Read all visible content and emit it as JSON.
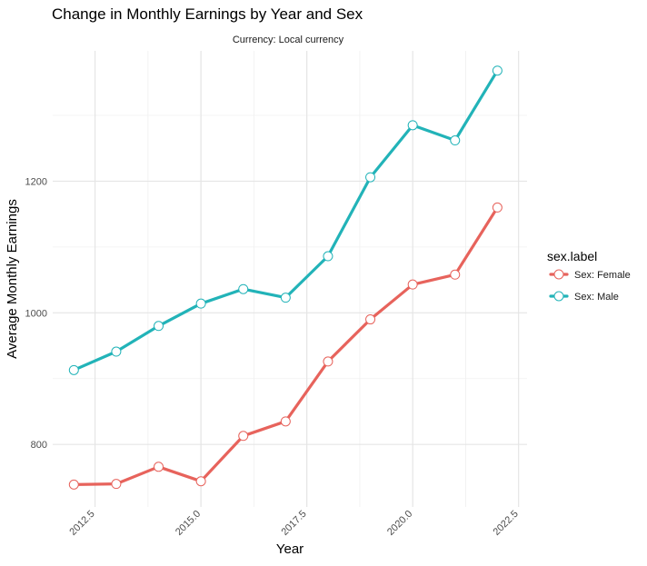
{
  "chart_data": {
    "type": "line",
    "title": "Change in Monthly Earnings by Year and Sex",
    "subtitle": "Currency: Local currency",
    "xlabel": "Year",
    "ylabel": "Average Monthly Earnings",
    "xlim": [
      2011.5,
      2022.7
    ],
    "ylim": [
      705,
      1398
    ],
    "x_ticks": [
      {
        "value": 2012.5,
        "label": "2012.5"
      },
      {
        "value": 2015.0,
        "label": "2015.0"
      },
      {
        "value": 2017.5,
        "label": "2017.5"
      },
      {
        "value": 2020.0,
        "label": "2020.0"
      },
      {
        "value": 2022.5,
        "label": "2022.5"
      }
    ],
    "y_ticks": [
      {
        "value": 800,
        "label": "800"
      },
      {
        "value": 1000,
        "label": "1000"
      },
      {
        "value": 1200,
        "label": "1200"
      }
    ],
    "grid": true,
    "legend": {
      "title": "sex.label",
      "placement": "right"
    },
    "x": [
      2012,
      2013,
      2014,
      2015,
      2016,
      2017,
      2018,
      2019,
      2020,
      2021,
      2022
    ],
    "series": [
      {
        "name": "Sex: Female",
        "color": "#e7635c",
        "values": [
          739,
          740,
          766,
          744,
          813,
          835,
          926,
          990,
          1043,
          1058,
          1160
        ]
      },
      {
        "name": "Sex: Male",
        "color": "#22b3b8",
        "values": [
          913,
          941,
          980,
          1014,
          1036,
          1023,
          1086,
          1206,
          1285,
          1262,
          1368
        ]
      }
    ]
  }
}
